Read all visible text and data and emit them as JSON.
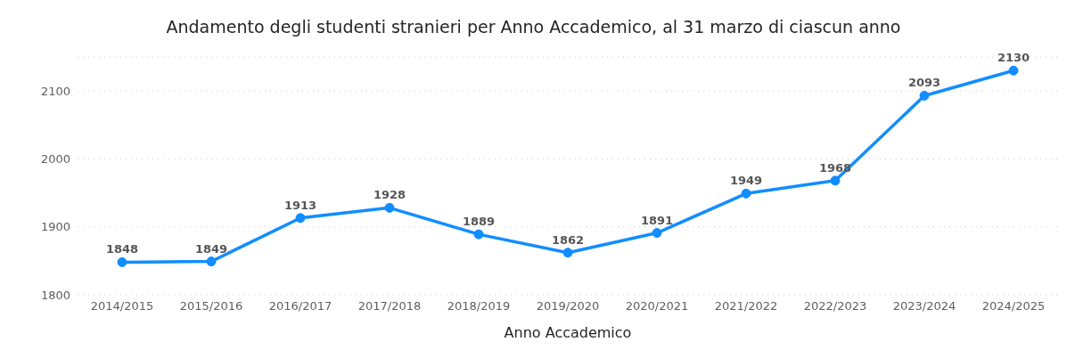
{
  "chart_data": {
    "type": "line",
    "title": "Andamento degli studenti stranieri per Anno Accademico, al 31 marzo di ciascun anno",
    "xlabel": "Anno Accademico",
    "categories": [
      "2014/2015",
      "2015/2016",
      "2016/2017",
      "2017/2018",
      "2018/2019",
      "2019/2020",
      "2020/2021",
      "2021/2022",
      "2022/2023",
      "2023/2024",
      "2024/2025"
    ],
    "series": [
      {
        "color": "#118dff",
        "values": [
          1848,
          1849,
          1913,
          1928,
          1889,
          1862,
          1891,
          1949,
          1968,
          2093,
          2130
        ]
      }
    ],
    "ylim": [
      1800,
      2150
    ],
    "yticks": [
      1800,
      1900,
      2000,
      2100
    ],
    "grid": "y",
    "marker": "circle",
    "line_style": "solid",
    "data_labels": true,
    "legend": false
  }
}
